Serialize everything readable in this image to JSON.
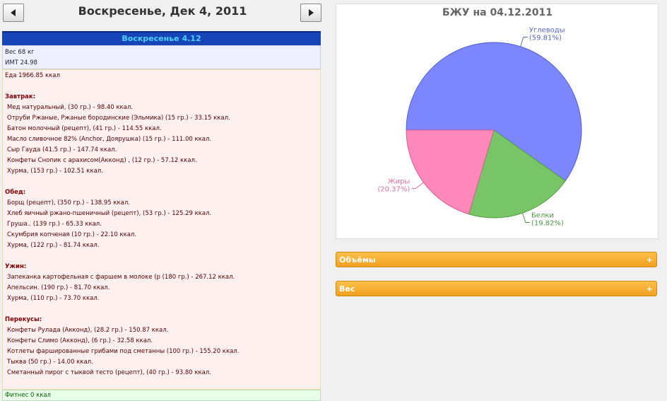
{
  "header": {
    "title": "Воскресенье, Дек 4, 2011"
  },
  "day": {
    "title": "Воскресенье 4.12",
    "weight": "Вес 68 кг",
    "bmi": "ИМТ 24.98",
    "food": "Еда 1966.85 ккал",
    "meals": [
      {
        "name": "Завтрак:",
        "items": [
          "Мед натуральный, (30 гр.) - 98.40 ккал.",
          "Отруби Ржаные, Ржаные бородинские (Эльмика) (15 гр.) - 33.15 ккал.",
          "Батон молочный (рецепт), (41 гр.) - 114.55 ккал.",
          "Масло сливочное 82% (Anchor, Доярушка) (15 гр.) - 111.00 ккал.",
          "Сыр Гауда (41.5 гр.) - 147.74 ккал.",
          "Конфеты Снопик с арахисом(Акконд) , (12 гр.) - 57.12 ккал.",
          "Хурма, (153 гр.) - 102.51 ккал."
        ]
      },
      {
        "name": "Обед:",
        "items": [
          "Борщ (рецепт), (350 гр.) - 138.95 ккал.",
          "Хлеб яичный ржано-пшеничный (рецепт), (53 гр.) - 125.29 ккал.",
          "Груша.. (139 гр.) - 65.33 ккал.",
          "Скумбрия копченая (10 гр.) - 22.10 ккал.",
          "Хурма, (122 гр.) - 81.74 ккал."
        ]
      },
      {
        "name": "Ужин:",
        "items": [
          "Запеканка картофельная с фаршем в молоке (р (180 гр.) - 267.12 ккал.",
          "Апельсин. (190 гр.) - 81.70 ккал.",
          "Хурма, (110 гр.) - 73.70 ккал."
        ]
      },
      {
        "name": "Перекусы:",
        "items": [
          "Конфеты Рулада (Акконд), (28.2 гр.) - 150.87 ккал.",
          "Конфеты Слимо (Акконд), (6 гр.) - 32.58 ккал.",
          "Котлеты фаршированные грибами под сметанны (100 гр.) - 155.20 ккал.",
          "Тыква (50 гр.) - 14.00 ккал.",
          "Сметанный пирог с тыквой тесто (рецепт), (40 гр.) - 93.80 ккал."
        ]
      }
    ],
    "fitness": "Фитнес 0 ккал"
  },
  "chart_data": {
    "type": "pie",
    "title": "БЖУ на 04.12.2011",
    "categories": [
      "Углеводы",
      "Белки",
      "Жиры"
    ],
    "values": [
      59.81,
      19.82,
      20.37
    ],
    "value_labels": [
      "(59.81%)",
      "(19.82%)",
      "(20.37%)"
    ],
    "colors": [
      "#7b86ff",
      "#77c566",
      "#ff88bb"
    ]
  },
  "panels": [
    "Объёмы",
    "Вес"
  ]
}
